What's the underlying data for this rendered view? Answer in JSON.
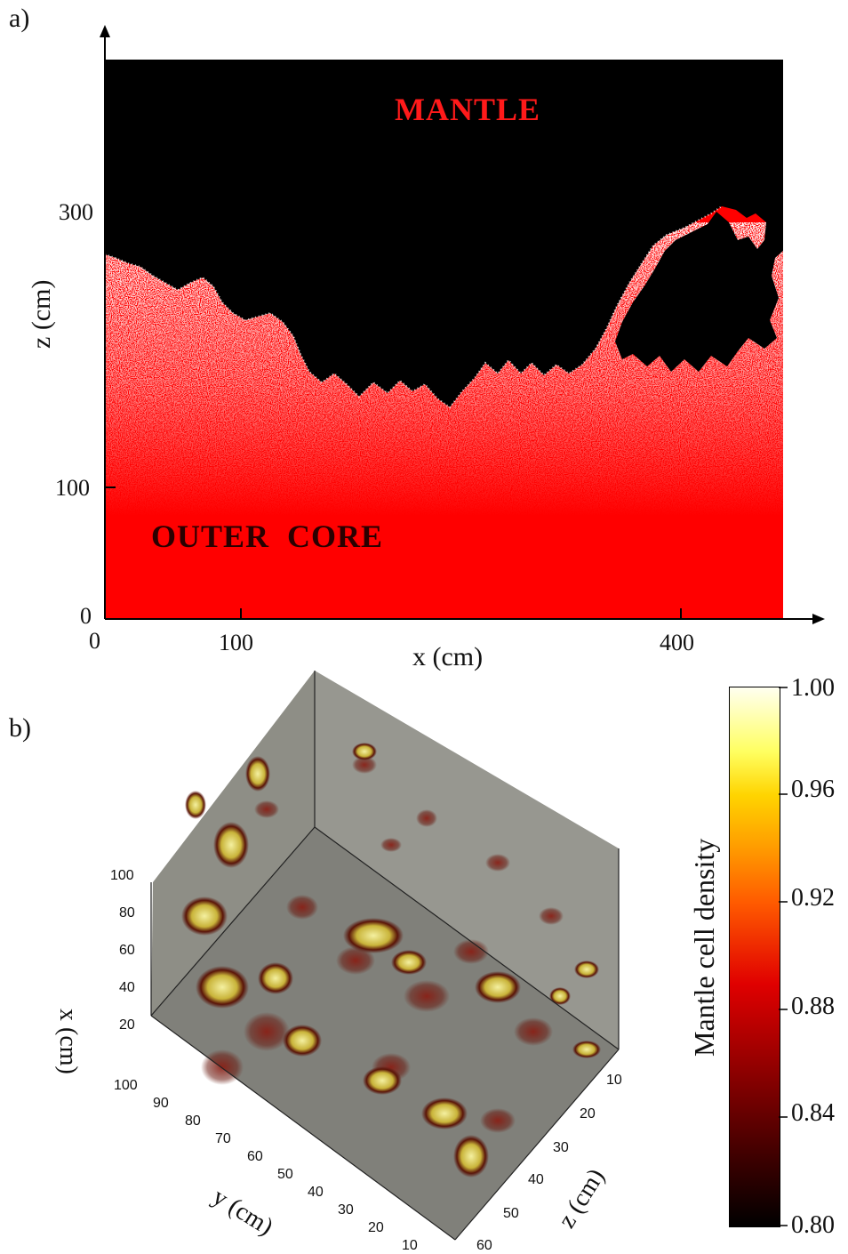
{
  "panel_a": {
    "label": "a)",
    "mantle_label": "MANTLE",
    "core_label": "OUTER  CORE",
    "x_axis_title": "x (cm)",
    "z_axis_title": "z (cm)",
    "x_ticks": [
      "0",
      "100",
      "400"
    ],
    "z_ticks": [
      "300",
      "100",
      "0"
    ],
    "colors": {
      "mantle": "#000000",
      "core": "#ff0000",
      "interface_speckle": "#ffffff",
      "mantle_label": "#ff1a1a",
      "core_label": "#2a0000"
    }
  },
  "panel_b": {
    "label": "b)",
    "x_axis_title": "x (cm)",
    "y_axis_title": "y (cm)",
    "z_axis_title": "z (cm)",
    "x_ticks": [
      "100",
      "80",
      "60",
      "40",
      "20"
    ],
    "y_ticks": [
      "100",
      "90",
      "80",
      "70",
      "60",
      "50",
      "40",
      "30",
      "20",
      "10"
    ],
    "z_ticks": [
      "10",
      "20",
      "30",
      "40",
      "50",
      "60"
    ],
    "colorbar": {
      "title": "Mantle cell density",
      "ticks": [
        "1.00",
        "0.96",
        "0.92",
        "0.88",
        "0.84",
        "0.80"
      ],
      "min": 0.8,
      "max": 1.0
    }
  }
}
